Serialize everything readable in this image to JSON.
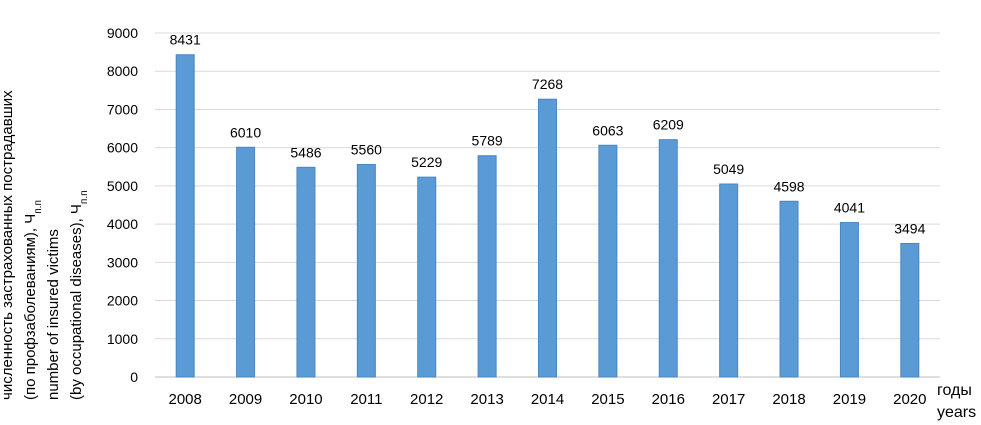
{
  "chart_data": {
    "type": "bar",
    "categories": [
      "2008",
      "2009",
      "2010",
      "2011",
      "2012",
      "2013",
      "2014",
      "2015",
      "2016",
      "2017",
      "2018",
      "2019",
      "2020"
    ],
    "values": [
      8431,
      6010,
      5486,
      5560,
      5229,
      5789,
      7268,
      6063,
      6209,
      5049,
      4598,
      4041,
      3494
    ],
    "ylim": [
      0,
      9000
    ],
    "yticks": [
      "0",
      "1000",
      "2000",
      "3000",
      "4000",
      "5000",
      "6000",
      "7000",
      "8000",
      "9000"
    ],
    "grid": true,
    "bar_color": "#5b9bd5",
    "ylabel_lines": [
      "численность застрахованных пострадавших",
      "(по профзаболеваниям), Ч",
      "number of insured victims",
      "(by occupational diseases), Ч"
    ],
    "ylabel_subscript": "п.п",
    "xlabel_lines": [
      "годы",
      "years"
    ]
  }
}
